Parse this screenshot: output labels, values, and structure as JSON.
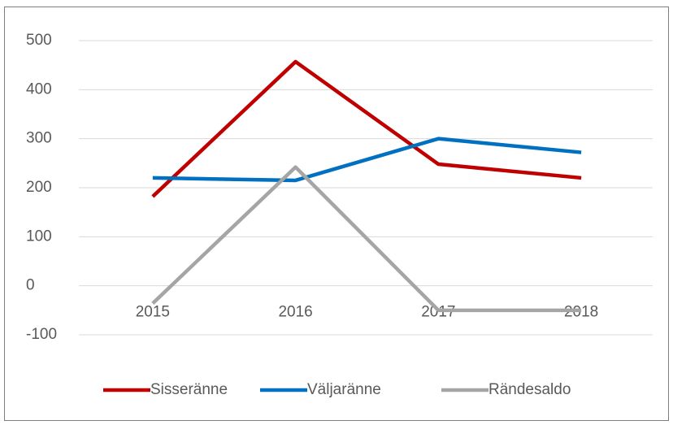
{
  "chart_data": {
    "type": "line",
    "categories": [
      "2015",
      "2016",
      "2017",
      "2018"
    ],
    "series": [
      {
        "name": "Sisseränne",
        "color": "#c00000",
        "values": [
          182,
          457,
          248,
          220
        ]
      },
      {
        "name": "Väljaränne",
        "color": "#0070c0",
        "values": [
          220,
          215,
          300,
          272
        ]
      },
      {
        "name": "Rändesaldo",
        "color": "#a5a5a5",
        "values": [
          -36,
          242,
          -50,
          -50
        ]
      }
    ],
    "ylim": [
      -100,
      500
    ],
    "yticks": [
      -100,
      0,
      100,
      200,
      300,
      400,
      500
    ],
    "grid": true,
    "legend": "bottom"
  }
}
